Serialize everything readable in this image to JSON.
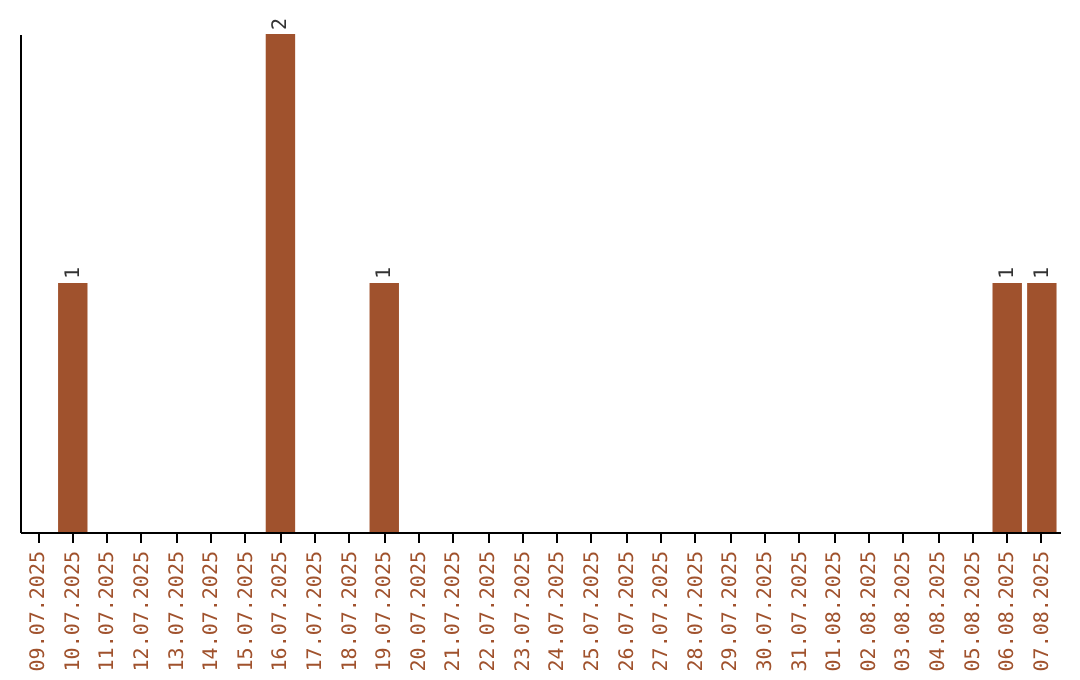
{
  "chart_data": {
    "type": "bar",
    "categories": [
      "09.07.2025",
      "10.07.2025",
      "11.07.2025",
      "12.07.2025",
      "13.07.2025",
      "14.07.2025",
      "15.07.2025",
      "16.07.2025",
      "17.07.2025",
      "18.07.2025",
      "19.07.2025",
      "20.07.2025",
      "21.07.2025",
      "22.07.2025",
      "23.07.2025",
      "24.07.2025",
      "25.07.2025",
      "26.07.2025",
      "27.07.2025",
      "28.07.2025",
      "29.07.2025",
      "30.07.2025",
      "31.07.2025",
      "01.08.2025",
      "02.08.2025",
      "03.08.2025",
      "04.08.2025",
      "05.08.2025",
      "06.08.2025",
      "07.08.2025"
    ],
    "values": [
      0,
      1,
      0,
      0,
      0,
      0,
      0,
      2,
      0,
      0,
      1,
      0,
      0,
      0,
      0,
      0,
      0,
      0,
      0,
      0,
      0,
      0,
      0,
      0,
      0,
      0,
      0,
      0,
      1,
      1
    ],
    "value_labels": [
      null,
      "1",
      null,
      null,
      null,
      null,
      null,
      "2",
      null,
      null,
      "1",
      null,
      null,
      null,
      null,
      null,
      null,
      null,
      null,
      null,
      null,
      null,
      null,
      null,
      null,
      null,
      null,
      null,
      "1",
      "1"
    ],
    "color": "#a0522d"
  }
}
